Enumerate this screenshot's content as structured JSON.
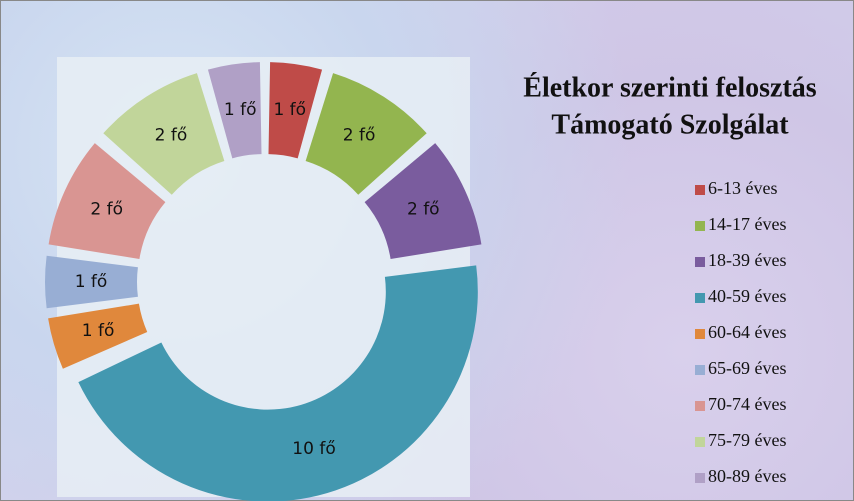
{
  "chart_data": {
    "type": "donut",
    "title": "Életkor szerinti felosztás",
    "subtitle": "Támogató Szolgálat",
    "categories": [
      "6-13 éves",
      "14-17 éves",
      "18-39 éves",
      "40-59 éves",
      "60-64 éves",
      "65-69 éves",
      "70-74 éves",
      "75-79 éves",
      "80-89 éves"
    ],
    "values": [
      1,
      2,
      2,
      10,
      1,
      1,
      2,
      2,
      1
    ],
    "value_labels": [
      "1 fő",
      "2 fő",
      "2 fő",
      "10  fő",
      "1 fő",
      "1 fő",
      "2 fő",
      "2 fő",
      "1 fő"
    ],
    "colors": [
      "#bf4b48",
      "#93b54f",
      "#7a5c9e",
      "#4398b0",
      "#e0883c",
      "#98aed4",
      "#d99592",
      "#c1d59a",
      "#b0a0c6"
    ],
    "legend": "right"
  }
}
